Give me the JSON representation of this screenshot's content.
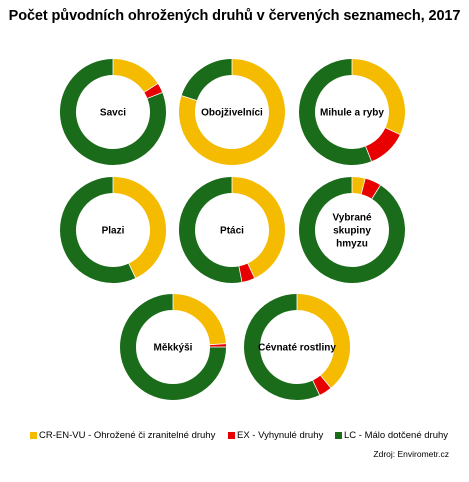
{
  "title": "Počet původních ohrožených druhů v červených seznamech, 2017",
  "source": "Zdroj: Envirometr.cz",
  "colors": {
    "threatened": "#F5BB00",
    "extinct": "#E80000",
    "least_concern": "#1A6B1A"
  },
  "chart_data": {
    "type": "pie",
    "variant": "donut",
    "title": "Počet původních ohrožených druhů v červených seznamech, 2017",
    "series_names": [
      "CR-EN-VU - Ohrožené či zranitelné druhy",
      "EX - Vyhynulé druhy",
      "LC - Málo dotčené druhy"
    ],
    "legend_position": "bottom",
    "charts": [
      {
        "label": "Savci",
        "values": [
          16,
          3,
          81
        ]
      },
      {
        "label": "Obojživelníci",
        "values": [
          80,
          0,
          20
        ]
      },
      {
        "label": "Mihule a ryby",
        "values": [
          32,
          12,
          56
        ]
      },
      {
        "label": "Plazi",
        "values": [
          43,
          0,
          57
        ]
      },
      {
        "label": "Ptáci",
        "values": [
          43,
          4,
          53
        ]
      },
      {
        "label": "Vybrané skupiny hmyzu",
        "values": [
          4,
          5,
          91
        ]
      },
      {
        "label": "Měkkýši",
        "values": [
          24,
          1,
          75
        ]
      },
      {
        "label": "Cévnaté rostliny",
        "values": [
          39,
          4,
          57
        ]
      }
    ]
  },
  "legend": [
    {
      "label": "CR-EN-VU - Ohrožené či zranitelné druhy",
      "color": "#F5BB00"
    },
    {
      "label": "EX - Vyhynulé druhy",
      "color": "#E80000"
    },
    {
      "label": "LC - Málo dotčené druhy",
      "color": "#1A6B1A"
    }
  ]
}
